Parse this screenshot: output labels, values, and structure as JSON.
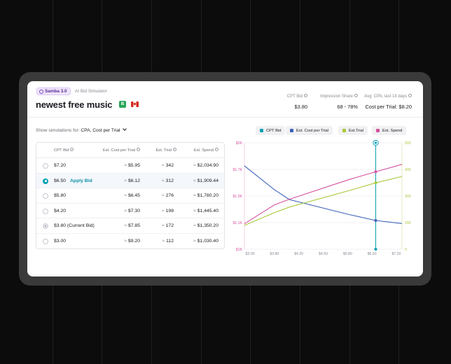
{
  "header": {
    "badge": "Samba 3.0",
    "subtitle": "AI Bid Simulator",
    "title": "newest free music",
    "db_badge": "B",
    "metrics": [
      {
        "label": "CPT Bid",
        "value": "$3.80"
      },
      {
        "label": "Impression Share",
        "value": "68 - 78%"
      },
      {
        "label": "Avg. CPA, last 14 days",
        "value": "Cost per Trial: $8.20"
      }
    ]
  },
  "simulation": {
    "prefix": "Show simulations for:",
    "selected": "CPA, Cost per Trial"
  },
  "table": {
    "columns": [
      "CPT Bid",
      "Est. Cost per Trial",
      "Est. Trial",
      "Est. Spend"
    ],
    "approx": "≈",
    "rows": [
      {
        "bid": "$7.20",
        "cpt": "$5.95",
        "trial": "342",
        "spend": "$2,034.90",
        "state": "default",
        "action": ""
      },
      {
        "bid": "$6.50",
        "cpt": "$6.12",
        "trial": "312",
        "spend": "$1,909.44",
        "state": "selected",
        "action": "Apply Bid"
      },
      {
        "bid": "$5.80",
        "cpt": "$6.45",
        "trial": "276",
        "spend": "$1,780.20",
        "state": "default",
        "action": ""
      },
      {
        "bid": "$4.20",
        "cpt": "$7.30",
        "trial": "198",
        "spend": "$1,445.40",
        "state": "default",
        "action": ""
      },
      {
        "bid": "$3.80 (Current Bid)",
        "cpt": "$7.85",
        "trial": "172",
        "spend": "$1,350.20",
        "state": "current",
        "action": ""
      },
      {
        "bid": "$3.00",
        "cpt": "$9.20",
        "trial": "112",
        "spend": "$1,030.40",
        "state": "default",
        "action": ""
      }
    ]
  },
  "colors": {
    "cpt_bid": "#0aa1b4",
    "cost_per_trial": "#3d62b8",
    "trial": "#a8c93a",
    "spend": "#d6519e"
  },
  "chart_data": {
    "type": "line",
    "legend": [
      "CPT Bid",
      "Est. Cost per Trial",
      "Est.Trial",
      "Est. Spend"
    ],
    "x": [
      3.0,
      3.8,
      4.2,
      5.8,
      6.5,
      7.2
    ],
    "x_ticks": [
      "$3.00",
      "$3.80",
      "$4.20",
      "$4.50",
      "$5.80",
      "$6.50",
      "$7.20"
    ],
    "y_left_ticks": [
      "$2K",
      "$1.7K",
      "$1.5K",
      "$1.1K",
      "$1K"
    ],
    "y_right_ticks": [
      "500",
      "400",
      "300",
      "200",
      "0"
    ],
    "highlight_x_index": 5,
    "series": [
      {
        "key": "cost_per_trial",
        "values": [
          9.2,
          7.85,
          7.3,
          6.45,
          6.12,
          5.95
        ]
      },
      {
        "key": "trial",
        "values": [
          112,
          172,
          198,
          276,
          312,
          342
        ]
      },
      {
        "key": "spend",
        "values": [
          1030.4,
          1350.2,
          1445.4,
          1780.2,
          1909.44,
          2034.9
        ]
      }
    ]
  }
}
